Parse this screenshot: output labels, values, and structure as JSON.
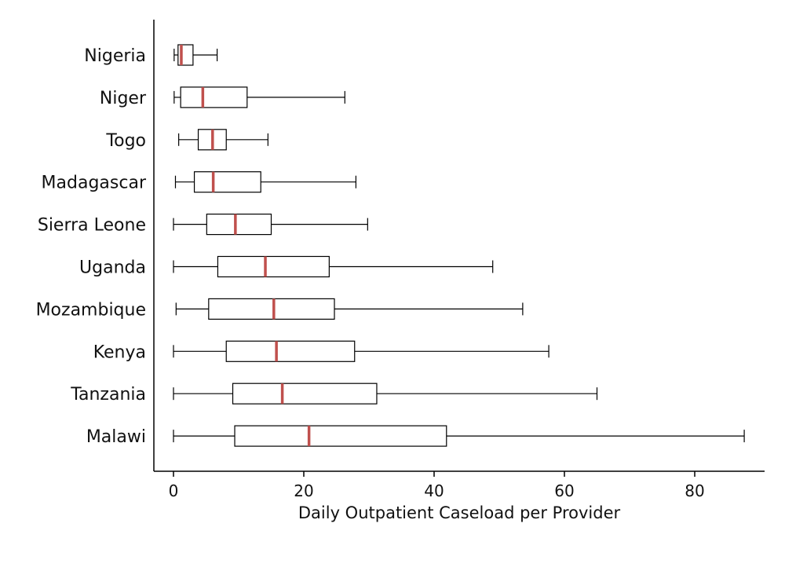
{
  "chart_data": {
    "type": "boxplot",
    "orientation": "horizontal",
    "title": "",
    "xlabel": "Daily Outpatient Caseload per Provider",
    "ylabel": "",
    "xlim": [
      -3,
      91
    ],
    "xticks": [
      0,
      20,
      40,
      60,
      80
    ],
    "grid": false,
    "colors": {
      "box_stroke": "#000000",
      "median": "#c0504d",
      "axis": "#000000"
    },
    "categories": [
      "Nigeria",
      "Niger",
      "Togo",
      "Madagascar",
      "Sierra Leone",
      "Uganda",
      "Mozambique",
      "Kenya",
      "Tanzania",
      "Malawi"
    ],
    "boxes": [
      {
        "label": "Nigeria",
        "whisker_low": 0.1,
        "q1": 0.7,
        "median": 1.2,
        "q3": 3.0,
        "whisker_high": 6.7
      },
      {
        "label": "Niger",
        "whisker_low": 0.1,
        "q1": 1.1,
        "median": 4.5,
        "q3": 11.3,
        "whisker_high": 26.3
      },
      {
        "label": "Togo",
        "whisker_low": 0.8,
        "q1": 3.8,
        "median": 6.0,
        "q3": 8.1,
        "whisker_high": 14.5
      },
      {
        "label": "Madagascar",
        "whisker_low": 0.3,
        "q1": 3.2,
        "median": 6.1,
        "q3": 13.4,
        "whisker_high": 28.0
      },
      {
        "label": "Sierra Leone",
        "whisker_low": 0.0,
        "q1": 5.1,
        "median": 9.5,
        "q3": 15.0,
        "whisker_high": 29.8
      },
      {
        "label": "Uganda",
        "whisker_low": 0.0,
        "q1": 6.8,
        "median": 14.1,
        "q3": 23.9,
        "whisker_high": 49.0
      },
      {
        "label": "Mozambique",
        "whisker_low": 0.4,
        "q1": 5.4,
        "median": 15.4,
        "q3": 24.7,
        "whisker_high": 53.6
      },
      {
        "label": "Kenya",
        "whisker_low": 0.0,
        "q1": 8.1,
        "median": 15.8,
        "q3": 27.8,
        "whisker_high": 57.6
      },
      {
        "label": "Tanzania",
        "whisker_low": 0.0,
        "q1": 9.1,
        "median": 16.7,
        "q3": 31.2,
        "whisker_high": 65.0
      },
      {
        "label": "Malawi",
        "whisker_low": 0.0,
        "q1": 9.4,
        "median": 20.8,
        "q3": 41.9,
        "whisker_high": 87.6
      }
    ]
  }
}
